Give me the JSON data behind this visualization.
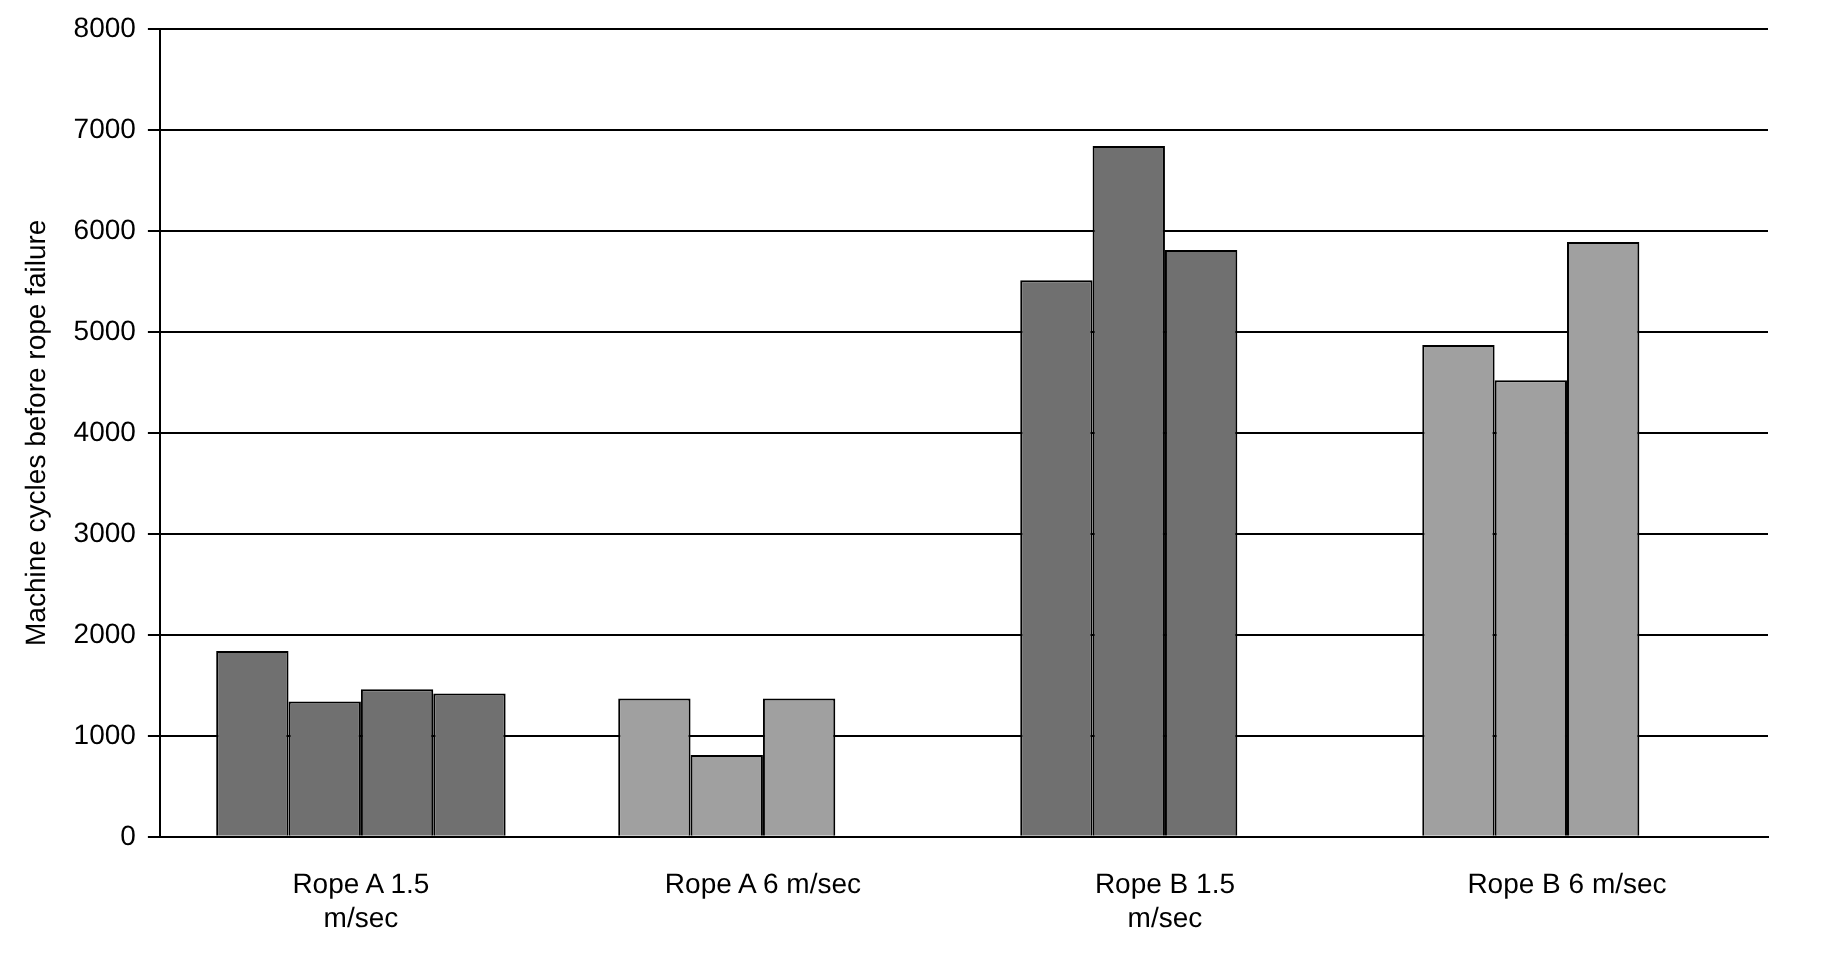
{
  "chart_data": {
    "type": "bar",
    "ylabel": "Machine cycles before rope failure",
    "categories": [
      "Rope A 1.5 m/sec",
      "Rope A 6 m/sec",
      "Rope B 1.5 m/sec",
      "Rope B 6 m/sec"
    ],
    "series": [
      {
        "colors": [
          "#707070",
          "#a0a0a0",
          "#707070",
          "#a0a0a0"
        ],
        "values": [
          1840,
          1370,
          5510,
          4870
        ]
      },
      {
        "colors": [
          "#707070",
          "#a0a0a0",
          "#707070",
          "#a0a0a0"
        ],
        "values": [
          1340,
          810,
          6840,
          4520
        ]
      },
      {
        "colors": [
          "#707070",
          "#a0a0a0",
          "#707070",
          "#a0a0a0"
        ],
        "values": [
          1460,
          1370,
          5810,
          5890
        ]
      },
      {
        "colors": [
          "#707070",
          "#a0a0a0",
          "#707070",
          "#a0a0a0"
        ],
        "values": [
          1420,
          null,
          null,
          null
        ]
      }
    ],
    "ylim": [
      0,
      8000
    ],
    "yticks": [
      0,
      1000,
      2000,
      3000,
      4000,
      5000,
      6000,
      7000,
      8000
    ],
    "grid": "y",
    "legend": false
  }
}
